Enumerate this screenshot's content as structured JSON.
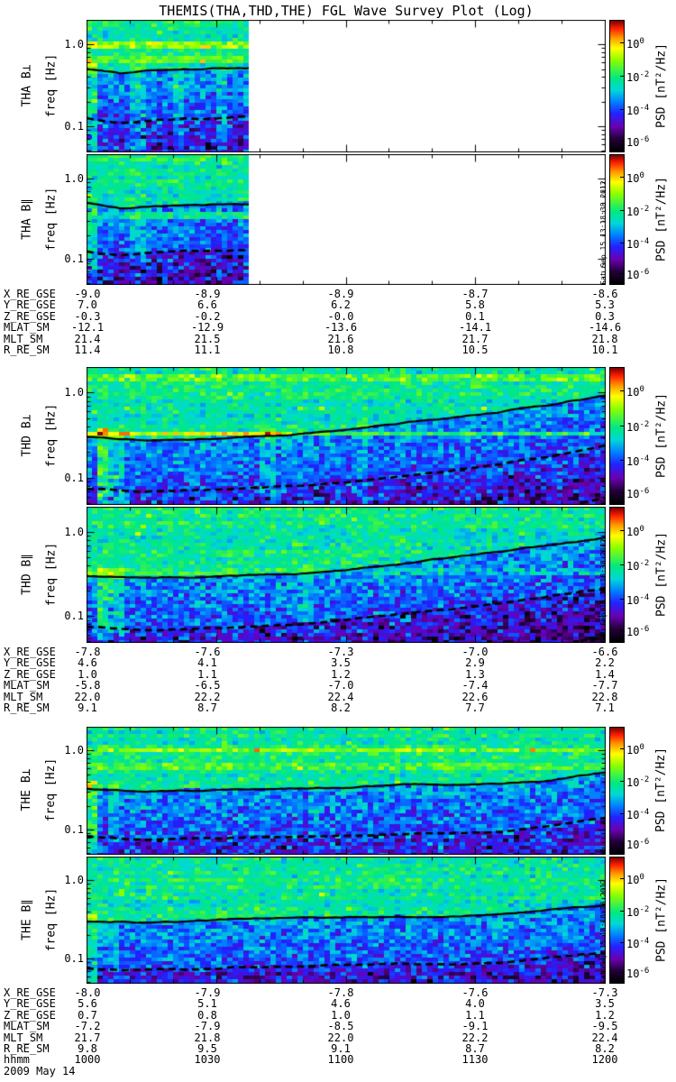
{
  "title": "THEMIS(THA,THD,THE) FGL Wave Survey Plot (Log)",
  "date_label": "2009 May 14",
  "timestamp": "Sat Sep 15 13:18:38 2012",
  "freq_axis": {
    "label": "freq [Hz]",
    "tick_high": "1.0",
    "tick_low": "0.1",
    "fmin_hz": 0.048,
    "fmax_hz": 2.0
  },
  "time_axis": {
    "name": "hhmm",
    "ticks": [
      "1000",
      "1030",
      "1100",
      "1130",
      "1200"
    ]
  },
  "colorbar": {
    "label": "PSD [nT²/Hz]",
    "ticks": [
      {
        "base": "10",
        "exp": "0",
        "frac": 0.17
      },
      {
        "base": "10",
        "exp": "-2",
        "frac": 0.425
      },
      {
        "base": "10",
        "exp": "-4",
        "frac": 0.675
      },
      {
        "base": "10",
        "exp": "-6",
        "frac": 0.91
      }
    ],
    "gradient": [
      [
        "#7a0000",
        0
      ],
      [
        "#ff2000",
        6
      ],
      [
        "#ff9800",
        13
      ],
      [
        "#ffff00",
        21
      ],
      [
        "#8cff00",
        30
      ],
      [
        "#00e882",
        44
      ],
      [
        "#00d8d8",
        53
      ],
      [
        "#0080ff",
        62
      ],
      [
        "#2222ff",
        71
      ],
      [
        "#6a00b0",
        81
      ],
      [
        "#24003c",
        90
      ],
      [
        "#000000",
        100
      ]
    ]
  },
  "panels": [
    {
      "probe": "THA",
      "ephemeris": {
        "rows": [
          {
            "label": "X_RE_GSE",
            "values": [
              "-9.0",
              "-8.9",
              "-8.9",
              "-8.7",
              "-8.6"
            ]
          },
          {
            "label": "Y_RE_GSE",
            "values": [
              "7.0",
              "6.6",
              "6.2",
              "5.8",
              "5.3"
            ]
          },
          {
            "label": "Z_RE_GSE",
            "values": [
              "-0.3",
              "-0.2",
              "-0.0",
              "0.1",
              "0.3"
            ]
          },
          {
            "label": "MLAT_SM",
            "values": [
              "-12.1",
              "-12.9",
              "-13.6",
              "-14.1",
              "-14.6"
            ]
          },
          {
            "label": "MLT_SM",
            "values": [
              "21.4",
              "21.5",
              "21.6",
              "21.7",
              "21.8"
            ]
          },
          {
            "label": "R_RE_SM",
            "values": [
              "11.4",
              "11.1",
              "10.8",
              "10.5",
              "10.1"
            ]
          }
        ]
      }
    },
    {
      "probe": "THD",
      "ephemeris": {
        "rows": [
          {
            "label": "X_RE_GSE",
            "values": [
              "-7.8",
              "-7.6",
              "-7.3",
              "-7.0",
              "-6.6"
            ]
          },
          {
            "label": "Y_RE_GSE",
            "values": [
              "4.6",
              "4.1",
              "3.5",
              "2.9",
              "2.2"
            ]
          },
          {
            "label": "Z_RE_GSE",
            "values": [
              "1.0",
              "1.1",
              "1.2",
              "1.3",
              "1.4"
            ]
          },
          {
            "label": "MLAT_SM",
            "values": [
              "-5.8",
              "-6.5",
              "-7.0",
              "-7.4",
              "-7.7"
            ]
          },
          {
            "label": "MLT_SM",
            "values": [
              "22.0",
              "22.2",
              "22.4",
              "22.6",
              "22.8"
            ]
          },
          {
            "label": "R_RE_SM",
            "values": [
              "9.1",
              "8.7",
              "8.2",
              "7.7",
              "7.1"
            ]
          }
        ]
      }
    },
    {
      "probe": "THE",
      "ephemeris": {
        "rows": [
          {
            "label": "X_RE_GSE",
            "values": [
              "-8.0",
              "-7.9",
              "-7.8",
              "-7.6",
              "-7.3"
            ]
          },
          {
            "label": "Y_RE_GSE",
            "values": [
              "5.6",
              "5.1",
              "4.6",
              "4.0",
              "3.5"
            ]
          },
          {
            "label": "Z_RE_GSE",
            "values": [
              "0.7",
              "0.8",
              "1.0",
              "1.1",
              "1.2"
            ]
          },
          {
            "label": "MLAT_SM",
            "values": [
              "-7.2",
              "-7.9",
              "-8.5",
              "-9.1",
              "-9.5"
            ]
          },
          {
            "label": "MLT_SM",
            "values": [
              "21.7",
              "21.8",
              "22.0",
              "22.2",
              "22.4"
            ]
          },
          {
            "label": "R_RE_SM",
            "values": [
              "9.8",
              "9.5",
              "9.1",
              "8.7",
              "8.2"
            ]
          }
        ]
      }
    }
  ],
  "chart_data": [
    {
      "type": "heatmap",
      "probe": "THA",
      "component": "B-perpendicular",
      "ylabel": "THA B⊥",
      "time_range": [
        "1000",
        "1200"
      ],
      "data_fraction": 0.316,
      "freq_range_hz": [
        0.048,
        2.0
      ],
      "psd_range": [
        "1e-7",
        "1e1"
      ],
      "seed": 11,
      "solid_line_hz": [
        0.5,
        0.47,
        0.44,
        0.45,
        0.47,
        0.48,
        0.49,
        0.48,
        0.49,
        0.5,
        0.5
      ],
      "dashed_line_ratio": 0.25,
      "dashed2": false,
      "vlow": 0,
      "stripes_hz": [
        {
          "f": 1.0,
          "a": 1.5
        },
        {
          "f": 0.68,
          "a": 0.8
        }
      ],
      "streaks_x": [
        {
          "x": 0.006,
          "a": 1.5
        },
        {
          "x": 0.1,
          "a": 0.8
        },
        {
          "x": 0.175,
          "a": 0.9
        },
        {
          "x": 0.26,
          "a": 0.8
        }
      ]
    },
    {
      "type": "heatmap",
      "probe": "THA",
      "component": "B-parallel",
      "ylabel": "THA B∥",
      "time_range": [
        "1000",
        "1200"
      ],
      "data_fraction": 0.316,
      "freq_range_hz": [
        0.048,
        2.0
      ],
      "psd_range": [
        "1e-7",
        "1e1"
      ],
      "seed": 12,
      "solid_line_hz": [
        0.5,
        0.47,
        0.44,
        0.45,
        0.47,
        0.48,
        0.49,
        0.48,
        0.49,
        0.5,
        0.5
      ],
      "dashed_line_ratio": 0.25,
      "dashed2": false,
      "vlow": -0.2,
      "stripes_hz": [
        {
          "f": 0.36,
          "a": 1.1
        }
      ],
      "streaks_x": [
        {
          "x": 0.006,
          "a": 1.2
        },
        {
          "x": 0.1,
          "a": 0.6
        }
      ]
    },
    {
      "type": "heatmap",
      "probe": "THD",
      "component": "B-perpendicular",
      "ylabel": "THD B⊥",
      "time_range": [
        "1000",
        "1200"
      ],
      "data_fraction": 1,
      "freq_range_hz": [
        0.048,
        2.0
      ],
      "psd_range": [
        "1e-7",
        "1e1"
      ],
      "seed": 21,
      "solid_line_hz": [
        0.3,
        0.28,
        0.29,
        0.31,
        0.33,
        0.37,
        0.43,
        0.5,
        0.6,
        0.74,
        0.95
      ],
      "dashed_line_ratio": 0.25,
      "dashed2": true,
      "vlow": 0,
      "stripes_hz": [
        {
          "f": 0.33,
          "a": 1.8
        },
        {
          "f": 1.45,
          "a": 0.9
        }
      ],
      "streaks_x": [
        {
          "x": 0.03,
          "a": 1.7
        },
        {
          "x": 0.055,
          "a": 1.1
        },
        {
          "x": 0.35,
          "a": 0.7
        },
        {
          "x": 0.53,
          "a": 0.6
        }
      ]
    },
    {
      "type": "heatmap",
      "probe": "THD",
      "component": "B-parallel",
      "ylabel": "THD B∥",
      "time_range": [
        "1000",
        "1200"
      ],
      "data_fraction": 1,
      "freq_range_hz": [
        0.048,
        2.0
      ],
      "psd_range": [
        "1e-7",
        "1e1"
      ],
      "seed": 22,
      "solid_line_hz": [
        0.3,
        0.28,
        0.29,
        0.31,
        0.33,
        0.37,
        0.43,
        0.5,
        0.6,
        0.72,
        0.88
      ],
      "dashed_line_ratio": 0.25,
      "dashed2": true,
      "vlow": -0.25,
      "stripes_hz": [
        {
          "f": 0.34,
          "a": 0.6
        }
      ],
      "streaks_x": [
        {
          "x": 0.03,
          "a": 1.5
        },
        {
          "x": 0.055,
          "a": 0.9
        },
        {
          "x": 0.42,
          "a": 0.6
        }
      ]
    },
    {
      "type": "heatmap",
      "probe": "THE",
      "component": "B-perpendicular",
      "ylabel": "THE B⊥",
      "time_range": [
        "1000",
        "1200"
      ],
      "data_fraction": 1,
      "freq_range_hz": [
        0.048,
        2.0
      ],
      "psd_range": [
        "1e-7",
        "1e1"
      ],
      "seed": 31,
      "solid_line_hz": [
        0.33,
        0.31,
        0.32,
        0.33,
        0.34,
        0.35,
        0.36,
        0.36,
        0.37,
        0.43,
        0.54
      ],
      "dashed_line_ratio": 0.25,
      "dashed2": false,
      "vlow": 0,
      "stripes_hz": [
        {
          "f": 1.0,
          "a": 1.2
        },
        {
          "f": 0.65,
          "a": 0.6
        }
      ],
      "streaks_x": [
        {
          "x": 0.012,
          "a": 1.7
        },
        {
          "x": 0.05,
          "a": 0.6
        },
        {
          "x": 0.44,
          "a": 0.5
        }
      ]
    },
    {
      "type": "heatmap",
      "probe": "THE",
      "component": "B-parallel",
      "ylabel": "THE B∥",
      "time_range": [
        "1000",
        "1200"
      ],
      "data_fraction": 1,
      "freq_range_hz": [
        0.048,
        2.0
      ],
      "psd_range": [
        "1e-7",
        "1e1"
      ],
      "seed": 32,
      "solid_line_hz": [
        0.3,
        0.29,
        0.3,
        0.32,
        0.33,
        0.34,
        0.35,
        0.34,
        0.37,
        0.44,
        0.5
      ],
      "dashed_line_ratio": 0.25,
      "dashed2": true,
      "vlow": -0.25,
      "stripes_hz": [],
      "streaks_x": [
        {
          "x": 0.012,
          "a": 1.5
        },
        {
          "x": 0.05,
          "a": 0.5
        }
      ]
    }
  ]
}
